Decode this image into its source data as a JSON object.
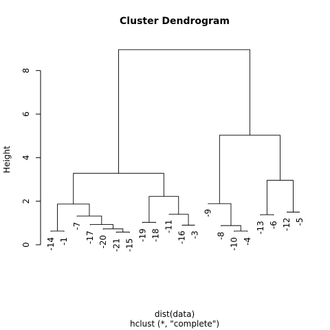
{
  "chart_data": {
    "type": "dendrogram",
    "title": "Cluster Dendrogram",
    "ylabel": "Height",
    "xlabel_line1": "dist(data)",
    "xlabel_line2": "hclust (*, \"complete\")",
    "ylim": [
      0,
      9
    ],
    "yticks": [
      0,
      2,
      4,
      6,
      8
    ],
    "leaves": [
      "-14",
      "-1",
      "-7",
      "-17",
      "-20",
      "-21",
      "-15",
      "-19",
      "-18",
      "-11",
      "-16",
      "-3",
      "-9",
      "-8",
      "-10",
      "-4",
      "-13",
      "-6",
      "-12",
      "-5"
    ],
    "leaf_hang": [
      0.6,
      0.6,
      1.3,
      0.9,
      0.7,
      0.55,
      0.55,
      1.0,
      1.0,
      1.4,
      0.9,
      0.9,
      1.9,
      0.85,
      0.6,
      0.6,
      1.35,
      1.35,
      1.5,
      1.5
    ],
    "merges": [
      {
        "id": "a",
        "left": "-14",
        "right": "-1",
        "height": 0.63
      },
      {
        "id": "b",
        "left": "-21",
        "right": "-15",
        "height": 0.58
      },
      {
        "id": "c",
        "left": "-20",
        "right": "b",
        "height": 0.73
      },
      {
        "id": "d",
        "left": "-17",
        "right": "c",
        "height": 0.93
      },
      {
        "id": "e",
        "left": "-7",
        "right": "d",
        "height": 1.32
      },
      {
        "id": "f",
        "left": "a",
        "right": "e",
        "height": 1.87
      },
      {
        "id": "g",
        "left": "-19",
        "right": "-18",
        "height": 1.03
      },
      {
        "id": "h",
        "left": "-16",
        "right": "-3",
        "height": 0.9
      },
      {
        "id": "i",
        "left": "-11",
        "right": "h",
        "height": 1.4
      },
      {
        "id": "j",
        "left": "g",
        "right": "i",
        "height": 2.22
      },
      {
        "id": "k",
        "left": "f",
        "right": "j",
        "height": 3.28
      },
      {
        "id": "l",
        "left": "-10",
        "right": "-4",
        "height": 0.63
      },
      {
        "id": "m",
        "left": "-8",
        "right": "l",
        "height": 0.88
      },
      {
        "id": "n",
        "left": "-9",
        "right": "m",
        "height": 1.89
      },
      {
        "id": "o",
        "left": "-13",
        "right": "-6",
        "height": 1.38
      },
      {
        "id": "p",
        "left": "-12",
        "right": "-5",
        "height": 1.5
      },
      {
        "id": "q",
        "left": "o",
        "right": "p",
        "height": 2.96
      },
      {
        "id": "r",
        "left": "n",
        "right": "q",
        "height": 5.03
      },
      {
        "id": "s",
        "left": "k",
        "right": "r",
        "height": 8.96
      }
    ]
  }
}
